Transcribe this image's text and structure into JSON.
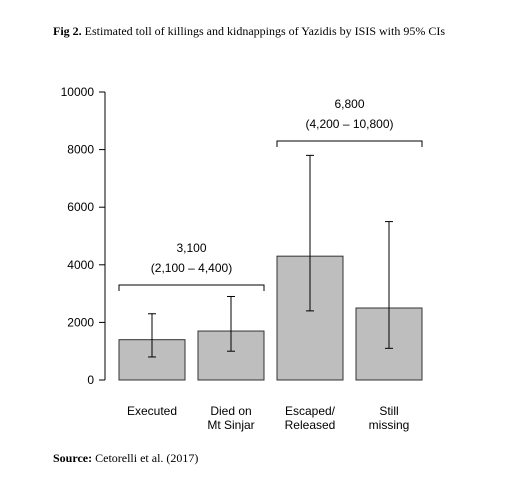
{
  "figure": {
    "label": "Fig 2.",
    "title": "Estimated toll of killings and kidnappings of Yazidis by ISIS with 95% CIs",
    "source_label": "Source:",
    "source_text": "Cetorelli et al. (2017)"
  },
  "chart_data": {
    "type": "bar",
    "categories": [
      [
        "Executed"
      ],
      [
        "Died on",
        "Mt Sinjar"
      ],
      [
        "Escaped/",
        "Released"
      ],
      [
        "Still",
        "missing"
      ]
    ],
    "values": [
      1400,
      1700,
      4300,
      2500
    ],
    "ci_low": [
      800,
      1000,
      2400,
      1100
    ],
    "ci_high": [
      2300,
      2900,
      7800,
      5500
    ],
    "ylim": [
      0,
      10000
    ],
    "yticks": [
      0,
      2000,
      4000,
      6000,
      8000,
      10000
    ],
    "ytick_labels": [
      "0",
      "2000",
      "4000",
      "6000",
      "8000",
      "10000"
    ],
    "bar_color": "#bebebe",
    "grid": false,
    "annotations": [
      {
        "group": [
          0,
          1
        ],
        "total": "3,100",
        "interval": "(2,100 – 4,400)",
        "bracket_value": 3300
      },
      {
        "group": [
          2,
          3
        ],
        "total": "6,800",
        "interval": "(4,200 – 10,800)",
        "bracket_value": 8300
      }
    ]
  }
}
